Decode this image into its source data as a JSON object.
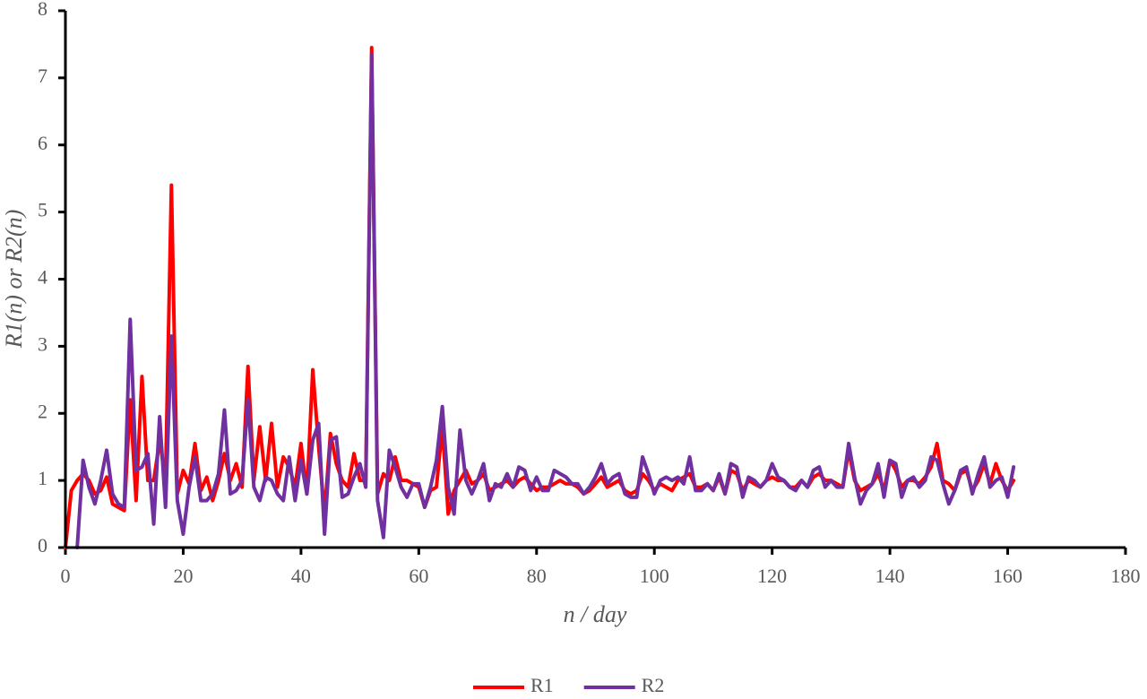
{
  "chart_data": {
    "type": "line",
    "x_label": "n / day",
    "y_label": "R1(n) or R2(n)",
    "x": [
      0,
      1,
      2,
      3,
      4,
      5,
      6,
      7,
      8,
      9,
      10,
      11,
      12,
      13,
      14,
      15,
      16,
      17,
      18,
      19,
      20,
      21,
      22,
      23,
      24,
      25,
      26,
      27,
      28,
      29,
      30,
      31,
      32,
      33,
      34,
      35,
      36,
      37,
      38,
      39,
      40,
      41,
      42,
      43,
      44,
      45,
      46,
      47,
      48,
      49,
      50,
      51,
      52,
      53,
      54,
      55,
      56,
      57,
      58,
      59,
      60,
      61,
      62,
      63,
      64,
      65,
      66,
      67,
      68,
      69,
      70,
      71,
      72,
      73,
      74,
      75,
      76,
      77,
      78,
      79,
      80,
      81,
      82,
      83,
      84,
      85,
      86,
      87,
      88,
      89,
      90,
      91,
      92,
      93,
      94,
      95,
      96,
      97,
      98,
      99,
      100,
      101,
      102,
      103,
      104,
      105,
      106,
      107,
      108,
      109,
      110,
      111,
      112,
      113,
      114,
      115,
      116,
      117,
      118,
      119,
      120,
      121,
      122,
      123,
      124,
      125,
      126,
      127,
      128,
      129,
      130,
      131,
      132,
      133,
      134,
      135,
      136,
      137,
      138,
      139,
      140,
      141,
      142,
      143,
      144,
      145,
      146,
      147,
      148,
      149,
      150,
      151,
      152,
      153,
      154,
      155,
      156,
      157,
      158,
      159,
      160,
      161
    ],
    "series": [
      {
        "name": "R1",
        "color": "#ff0000",
        "values": [
          0,
          0.85,
          1.0,
          1.1,
          1.0,
          0.8,
          0.85,
          1.05,
          0.65,
          0.6,
          0.55,
          2.2,
          0.7,
          2.55,
          1.0,
          1.0,
          1.6,
          1.0,
          5.4,
          0.8,
          1.15,
          0.95,
          1.55,
          0.85,
          1.05,
          0.7,
          1.0,
          1.4,
          1.0,
          1.25,
          0.9,
          2.7,
          1.0,
          1.8,
          1.0,
          1.85,
          0.9,
          1.35,
          1.2,
          0.9,
          1.55,
          0.8,
          2.65,
          1.5,
          0.5,
          1.7,
          1.25,
          1.0,
          0.9,
          1.4,
          1.0,
          1.0,
          7.45,
          0.8,
          1.1,
          1.0,
          1.35,
          1.0,
          1.0,
          0.95,
          0.9,
          0.6,
          0.85,
          0.9,
          1.8,
          0.5,
          0.85,
          1.0,
          1.15,
          0.95,
          1.0,
          1.1,
          0.85,
          0.9,
          0.95,
          1.0,
          0.9,
          1.0,
          1.05,
          0.95,
          0.85,
          0.9,
          0.9,
          0.95,
          1.0,
          0.95,
          0.95,
          0.9,
          0.8,
          0.85,
          0.95,
          1.05,
          0.9,
          0.95,
          1.0,
          0.85,
          0.8,
          0.85,
          1.1,
          1.0,
          0.85,
          0.95,
          0.9,
          0.85,
          1.0,
          1.05,
          1.1,
          0.9,
          0.9,
          0.95,
          0.85,
          1.05,
          0.8,
          1.15,
          1.1,
          0.85,
          1.0,
          0.95,
          0.9,
          1.0,
          1.05,
          1.0,
          1.0,
          0.9,
          0.9,
          1.0,
          0.9,
          1.05,
          1.1,
          1.0,
          1.0,
          0.95,
          0.9,
          1.45,
          1.0,
          0.85,
          0.9,
          0.95,
          1.1,
          0.85,
          1.3,
          1.15,
          0.9,
          1.0,
          1.0,
          0.95,
          1.05,
          1.2,
          1.55,
          1.0,
          0.95,
          0.85,
          1.1,
          1.15,
          0.85,
          1.0,
          1.25,
          0.95,
          1.25,
          1.0,
          0.85,
          1.0
        ]
      },
      {
        "name": "R2",
        "color": "#7030a0",
        "values": [
          null,
          null,
          0,
          1.3,
          0.9,
          0.65,
          1.0,
          1.45,
          0.8,
          0.65,
          0.6,
          3.4,
          1.15,
          1.2,
          1.4,
          0.35,
          1.95,
          0.6,
          3.15,
          0.7,
          0.2,
          0.9,
          1.35,
          0.7,
          0.7,
          0.8,
          1.1,
          2.05,
          0.8,
          0.85,
          1.0,
          2.2,
          0.9,
          0.7,
          1.05,
          1.0,
          0.8,
          0.7,
          1.35,
          0.7,
          1.3,
          0.8,
          1.6,
          1.85,
          0.2,
          1.6,
          1.65,
          0.75,
          0.8,
          1.05,
          1.25,
          0.9,
          7.35,
          0.7,
          0.15,
          1.45,
          1.2,
          0.9,
          0.75,
          0.95,
          0.95,
          0.6,
          0.9,
          1.3,
          2.1,
          0.9,
          0.5,
          1.75,
          1.0,
          0.8,
          1.0,
          1.25,
          0.7,
          0.95,
          0.9,
          1.1,
          0.9,
          1.2,
          1.15,
          0.85,
          1.05,
          0.85,
          0.85,
          1.15,
          1.1,
          1.05,
          0.95,
          0.95,
          0.8,
          0.9,
          1.05,
          1.25,
          0.95,
          1.05,
          1.1,
          0.8,
          0.75,
          0.75,
          1.35,
          1.1,
          0.8,
          1.0,
          1.05,
          1.0,
          1.05,
          0.95,
          1.35,
          0.85,
          0.85,
          0.95,
          0.85,
          1.1,
          0.8,
          1.25,
          1.2,
          0.75,
          1.05,
          1.0,
          0.9,
          1.0,
          1.25,
          1.05,
          1.0,
          0.9,
          0.85,
          1.0,
          0.9,
          1.15,
          1.2,
          0.9,
          1.0,
          0.9,
          0.9,
          1.55,
          1.05,
          0.65,
          0.85,
          0.95,
          1.25,
          0.75,
          1.3,
          1.25,
          0.75,
          1.0,
          1.05,
          0.9,
          1.0,
          1.35,
          1.3,
          0.95,
          0.65,
          0.85,
          1.15,
          1.2,
          0.8,
          1.1,
          1.35,
          0.9,
          1.0,
          1.05,
          0.75,
          1.2
        ]
      }
    ],
    "xlim": [
      0,
      180
    ],
    "xticks": [
      0,
      20,
      40,
      60,
      80,
      100,
      120,
      140,
      160,
      180
    ],
    "ylim": [
      0,
      8
    ],
    "yticks": [
      0,
      1,
      2,
      3,
      4,
      5,
      6,
      7,
      8
    ],
    "grid": false,
    "legend": "bottom"
  }
}
